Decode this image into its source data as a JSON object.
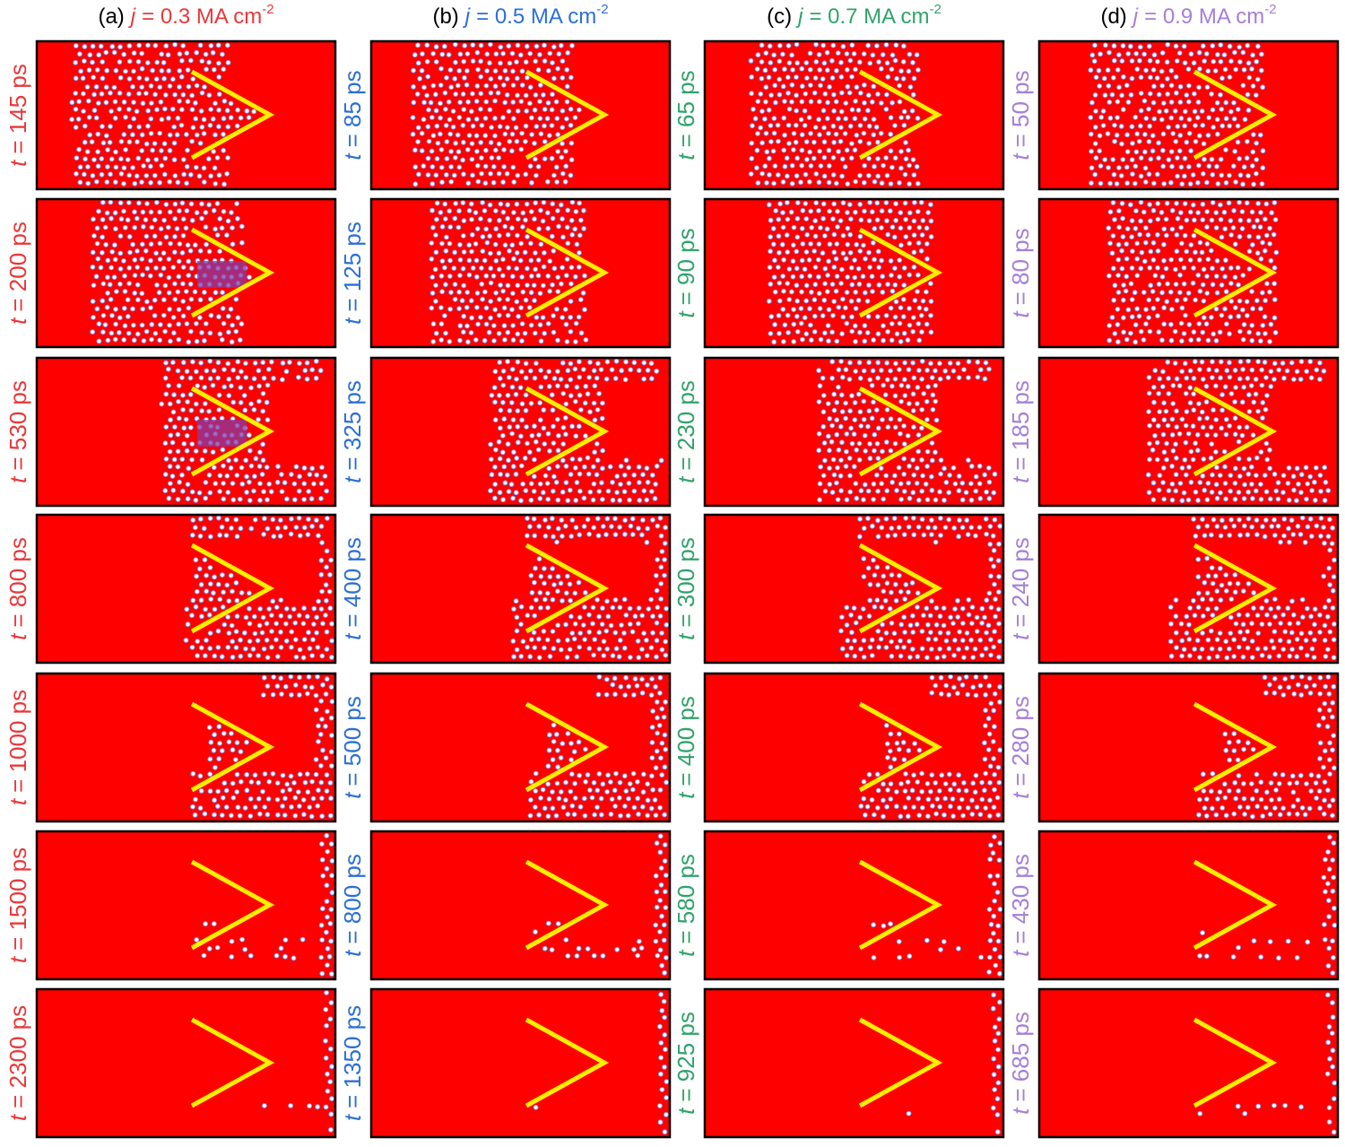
{
  "current_symbol": "j",
  "time_symbol": "t",
  "columns": [
    {
      "label": "(a)",
      "current": "= 0.3 MA cm",
      "exponent": "-2",
      "color": "#e8383b",
      "times": [
        "= 145 ps",
        "= 200 ps",
        "= 530 ps",
        "= 800 ps",
        "= 1000 ps",
        "= 1500 ps",
        "= 2300 ps"
      ]
    },
    {
      "label": "(b)",
      "current": "= 0.5 MA cm",
      "exponent": "-2",
      "color": "#2b6fd6",
      "times": [
        "= 85 ps",
        "= 125 ps",
        "= 325 ps",
        "= 400 ps",
        "= 500 ps",
        "= 800 ps",
        "= 1350 ps"
      ]
    },
    {
      "label": "(c)",
      "current": "= 0.7 MA cm",
      "exponent": "-2",
      "color": "#2fa36b",
      "times": [
        "= 65 ps",
        "= 90 ps",
        "= 230 ps",
        "= 300 ps",
        "= 400 ps",
        "= 580 ps",
        "= 925 ps"
      ]
    },
    {
      "label": "(d)",
      "current": "= 0.9 MA cm",
      "exponent": "-2",
      "color": "#a57fd8",
      "times": [
        "= 50 ps",
        "= 80 ps",
        "= 185 ps",
        "= 240 ps",
        "= 280 ps",
        "= 430 ps",
        "= 685 ps"
      ]
    }
  ]
}
